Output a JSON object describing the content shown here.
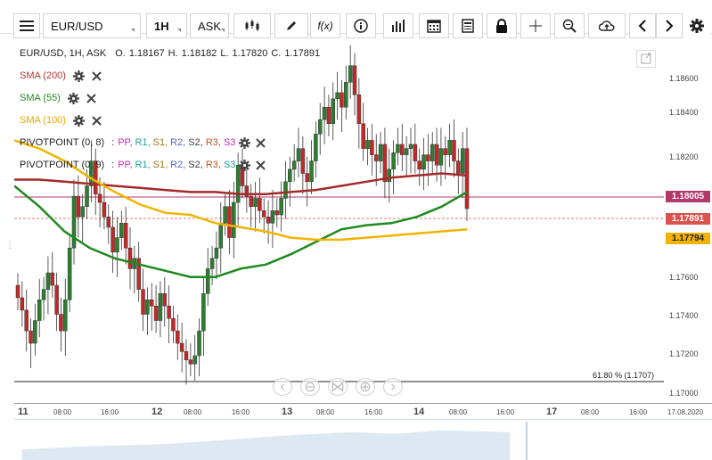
{
  "toolbar": {
    "menu_icon": "hamburger-icon",
    "symbol": "EUR/USD",
    "timeframe": "1H",
    "price_type": "ASK",
    "icons": [
      "candles-icon",
      "pen-icon",
      "function-icon",
      "info-icon",
      "bars-icon",
      "calendar-icon",
      "news-icon",
      "lock-icon",
      "crosshair-icon",
      "zoom-icon",
      "cloud-upload-icon",
      "chevron-left-icon",
      "chevron-right-icon",
      "gear-icon"
    ]
  },
  "legend": {
    "instrument": "EUR/USD, 1H, ASK",
    "ohlc": {
      "o_label": "O.",
      "o": "1.18167",
      "h_label": "H.",
      "h": "1.18182",
      "l_label": "L.",
      "l": "1.17820",
      "c_label": "C.",
      "c": "1.17891"
    },
    "indicators": [
      {
        "label": "SMA (200)",
        "color": "#b23333"
      },
      {
        "label": "SMA (55)",
        "color": "#1e8a1e"
      },
      {
        "label": "SMA (100)",
        "color": "#f2b300"
      }
    ],
    "pivots": [
      {
        "label": "PIVOTPOINT (0, 8)",
        "sep": ":"
      },
      {
        "label": "PIVOTPOINT (0, 9)",
        "sep": ":"
      }
    ],
    "pivot_levels": [
      {
        "t": "PP,",
        "c": "#c42fc4"
      },
      {
        "t": "R1,",
        "c": "#1aa39a"
      },
      {
        "t": "S1,",
        "c": "#9a7a1a"
      },
      {
        "t": "R2,",
        "c": "#5566cc"
      },
      {
        "t": "S2,",
        "c": "#444444"
      },
      {
        "t": "R3,",
        "c": "#c8541a"
      },
      {
        "t": "S3",
        "c": "#c42fc4"
      }
    ]
  },
  "price_axis": {
    "ticks": [
      "1.18600",
      "1.18400",
      "1.18200",
      "1.17600",
      "1.17400",
      "1.17200",
      "1.17000"
    ],
    "current_tag": "1.17891",
    "pivot_tag": "1.18005",
    "sma_tag": "1.17794",
    "colors": {
      "current": "#d9534f",
      "pivot": "#b23a6a",
      "sma100": "#f2b300"
    }
  },
  "time_axis": {
    "labels": [
      {
        "t": "11",
        "day": true
      },
      {
        "t": "08:00"
      },
      {
        "t": "16:00"
      },
      {
        "t": "12",
        "day": true
      },
      {
        "t": "08:00"
      },
      {
        "t": "16:00"
      },
      {
        "t": "13",
        "day": true
      },
      {
        "t": "08:00"
      },
      {
        "t": "16:00"
      },
      {
        "t": "14",
        "day": true
      },
      {
        "t": "08:00"
      },
      {
        "t": "16:00"
      },
      {
        "t": "17",
        "day": true
      },
      {
        "t": "08:00"
      },
      {
        "t": "16:00"
      },
      {
        "t": "17.08.2020"
      }
    ]
  },
  "fib_label": "61.80 % (1.1707)",
  "chart_data": {
    "type": "line",
    "ylim": [
      1.169,
      1.1875
    ],
    "series": [
      {
        "name": "SMA (200)",
        "values": [
          1.1803,
          1.1803,
          1.1802,
          1.1801,
          1.18,
          1.1799,
          1.1798,
          1.1797,
          1.1797,
          1.1796,
          1.1796,
          1.1797,
          1.1798,
          1.18,
          1.1802,
          1.1804,
          1.1805,
          1.1806,
          1.1805
        ]
      },
      {
        "name": "SMA (55)",
        "values": [
          1.18,
          1.179,
          1.1778,
          1.177,
          1.1765,
          1.1762,
          1.1759,
          1.1756,
          1.1756,
          1.176,
          1.1762,
          1.1767,
          1.1773,
          1.1779,
          1.1781,
          1.1782,
          1.1785,
          1.179,
          1.1797
        ]
      },
      {
        "name": "SMA (100)",
        "values": [
          1.1822,
          1.1818,
          1.1812,
          1.1804,
          1.1797,
          1.1791,
          1.1787,
          1.1786,
          1.1782,
          1.178,
          1.1778,
          1.1775,
          1.1774,
          1.1774,
          1.1775,
          1.1776,
          1.1777,
          1.1778,
          1.1779
        ]
      }
    ]
  }
}
